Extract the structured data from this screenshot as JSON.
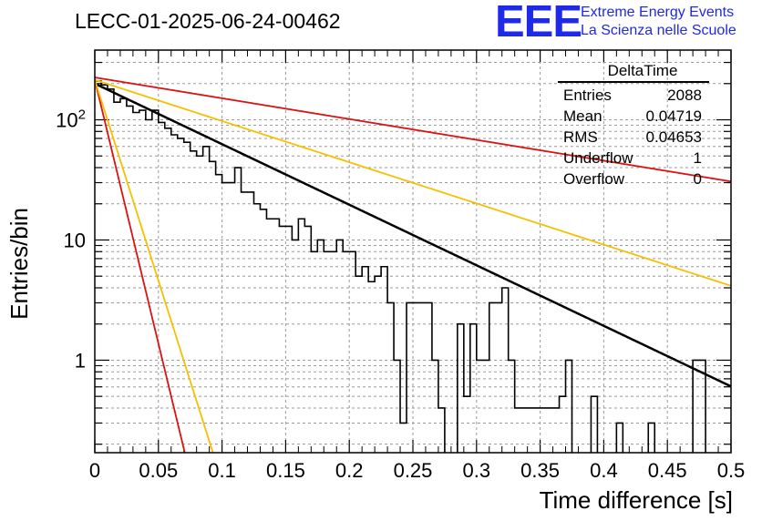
{
  "header": {
    "title": "LECC-01-2025-06-24-00462",
    "logo_text": "EEE",
    "logo_line1": "Extreme Energy Events",
    "logo_line2": "La Scienza nelle Scuole"
  },
  "stats_box": {
    "title": "DeltaTime",
    "rows": [
      {
        "label": "Entries",
        "value": "2088"
      },
      {
        "label": "Mean",
        "value": "0.04719"
      },
      {
        "label": "RMS",
        "value": "0.04653"
      },
      {
        "label": "Underflow",
        "value": "1"
      },
      {
        "label": "Overflow",
        "value": "0"
      }
    ]
  },
  "chart_data": {
    "type": "line",
    "xlabel": "Time difference [s]",
    "ylabel": "Entries/bin",
    "xlim": [
      0,
      0.5
    ],
    "ylim": [
      0.17,
      380
    ],
    "yscale": "log",
    "grid": true,
    "x_ticks": [
      "0",
      "0.05",
      "0.1",
      "0.15",
      "0.2",
      "0.25",
      "0.3",
      "0.35",
      "0.4",
      "0.45",
      "0.5"
    ],
    "y_ticks": [
      "1",
      "10",
      "10^2"
    ],
    "histogram": {
      "bin_width": 0.005,
      "x_start": 0,
      "values": [
        210,
        195,
        180,
        140,
        150,
        130,
        115,
        120,
        100,
        120,
        95,
        85,
        75,
        70,
        65,
        55,
        50,
        60,
        45,
        35,
        30,
        30,
        40,
        25,
        25,
        20,
        18,
        15,
        15,
        13,
        13,
        10,
        15,
        13,
        8,
        10,
        8,
        8,
        10,
        8,
        8,
        5,
        6,
        4.5,
        5,
        6,
        3,
        1,
        0.3,
        3,
        3,
        3,
        3,
        1,
        0.4,
        0,
        0,
        2,
        0.5,
        2,
        1,
        1,
        3,
        3,
        4,
        1,
        0.4,
        0.4,
        0.4,
        0.4,
        0.4,
        0.4,
        0.4,
        0.5,
        1,
        0,
        0,
        0,
        0.5,
        0,
        0,
        0,
        0.3,
        0,
        0,
        0,
        0,
        0.3,
        0,
        0,
        0,
        0,
        0,
        0,
        1,
        1,
        0,
        0,
        0,
        0
      ],
      "color": "#000000"
    },
    "series": [
      {
        "A": 200,
        "tau": 0.0862,
        "color": "#000000",
        "width": 2.5
      },
      {
        "A": 225,
        "tau": 0.2509,
        "color": "#dd1111",
        "width": 1.8
      },
      {
        "A": 215,
        "tau": 0.1267,
        "color": "#f5c000",
        "width": 1.8
      },
      {
        "A": 215,
        "tau": 0.0099,
        "color": "#dd1111",
        "width": 1.8
      },
      {
        "A": 215,
        "tau": 0.013,
        "color": "#f5c000",
        "width": 1.8
      }
    ]
  }
}
